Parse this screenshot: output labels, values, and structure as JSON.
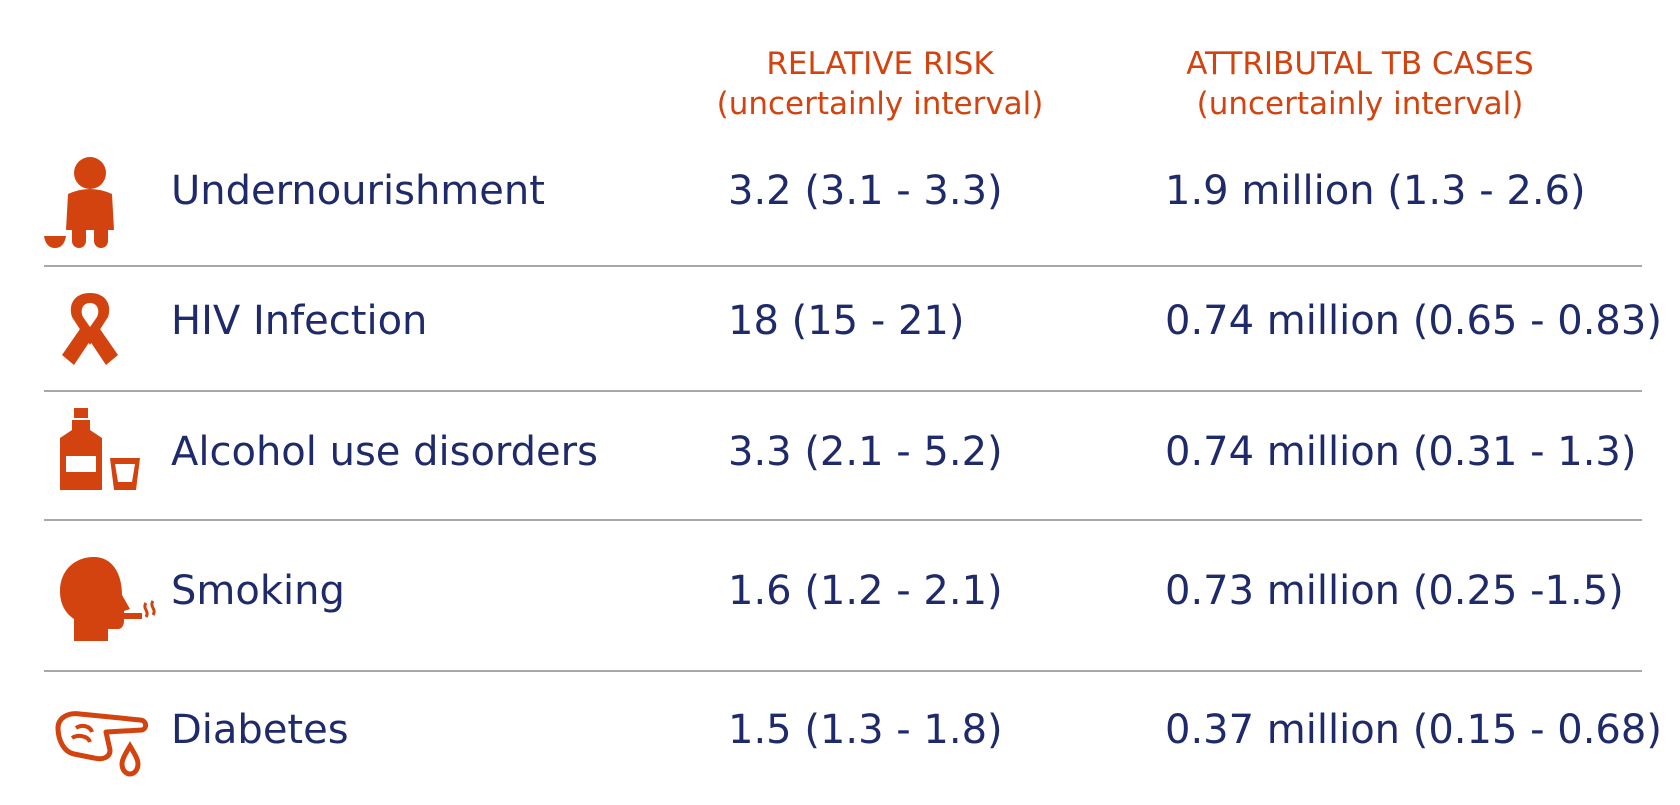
{
  "columns": {
    "relative_risk": {
      "title": "RELATIVE RISK",
      "subtitle": "(uncertainly interval)"
    },
    "attributable_cases": {
      "title": "ATTRIBUTAL TB CASES",
      "subtitle": "(uncertainly interval)"
    }
  },
  "accent_color": "#d2430f",
  "text_color": "#1f2a6b",
  "divider_color": "#a8a8a8",
  "rows": [
    {
      "icon": "undernourishment-icon",
      "label": "Undernourishment",
      "relative_risk": "3.2 (3.1 - 3.3)",
      "attributable_cases": "1.9 million (1.3 - 2.6)"
    },
    {
      "icon": "hiv-ribbon-icon",
      "label": "HIV Infection",
      "relative_risk": "18 (15 - 21)",
      "attributable_cases": "0.74 million (0.65 - 0.83)"
    },
    {
      "icon": "alcohol-bottle-icon",
      "label": "Alcohol use disorders",
      "relative_risk": "3.3 (2.1 - 5.2)",
      "attributable_cases": "0.74 million (0.31 - 1.3)"
    },
    {
      "icon": "smoking-head-icon",
      "label": "Smoking",
      "relative_risk": "1.6 (1.2 - 2.1)",
      "attributable_cases": "0.73 million (0.25 -1.5)"
    },
    {
      "icon": "diabetes-finger-drop-icon",
      "label": "Diabetes",
      "relative_risk": "1.5 (1.3 - 1.8)",
      "attributable_cases": "0.37 million (0.15 - 0.68)"
    }
  ]
}
